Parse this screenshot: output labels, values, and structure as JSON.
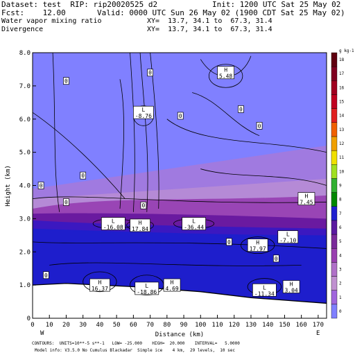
{
  "header": {
    "dataset": "Dataset: test  RIP: rip20020525 d2",
    "init": "Init: 1200 UTC Sat 25 May 02",
    "fcst": "Fcst:    12.00",
    "valid": "Valid: 0000 UTC Sun 26 May 02 (1900 CDT Sat 25 May 02)",
    "field1": "Water vapor mixing ratio",
    "xy1": "XY=  13.7, 34.1 to  67.3, 31.4",
    "field2": "Divergence",
    "xy2": "XY=  13.7, 34.1 to  67.3, 31.4"
  },
  "footer": {
    "line1": "CONTOURS:  UNITS=10**-5 s**-1   LOW= -25.000    HIGH=  20.000    INTERVAL=   5.0000",
    "line2": "Model info: V3.5.0 No Cumulus Blackadar  Simple ice    4 km,  29 levels,  10 sec",
    "west": "W",
    "east": "E"
  },
  "chart_data": {
    "type": "heatmap",
    "xlabel": "Distance (km)",
    "ylabel": "Height (km)",
    "xlim": [
      0,
      175
    ],
    "ylim": [
      0,
      8
    ],
    "xticks": [
      0,
      10,
      20,
      30,
      40,
      50,
      60,
      70,
      80,
      90,
      100,
      110,
      120,
      130,
      140,
      150,
      160,
      170
    ],
    "yticks": [
      "0",
      "1.0",
      "2.0",
      "3.0",
      "4.0",
      "5.0",
      "6.0",
      "7.0",
      "8.0"
    ],
    "colorbar": {
      "unit": "g kg-1",
      "levels": [
        "0",
        "1",
        "2",
        "3",
        "4",
        "5",
        "6",
        "7",
        "8",
        "9",
        "10",
        "11",
        "12",
        "13",
        "14",
        "15",
        "16",
        "17",
        "18"
      ],
      "colors": [
        "#8080ff",
        "#a066dd",
        "#c090d0",
        "#b070c8",
        "#9940b0",
        "#7a2a9a",
        "#5a1aa0",
        "#2020d0",
        "#008800",
        "#30b030",
        "#a0e020",
        "#f0e000",
        "#f0a000",
        "#f06000",
        "#e02020",
        "#c00020",
        "#a00020",
        "#800020",
        "#600010"
      ]
    },
    "labels_zero": [
      {
        "text": "0",
        "x": 20,
        "y": 7.15
      },
      {
        "text": "0",
        "x": 70,
        "y": 7.4
      },
      {
        "text": "0",
        "x": 124,
        "y": 6.3
      },
      {
        "text": "0",
        "x": 88,
        "y": 6.1
      },
      {
        "text": "0",
        "x": 30,
        "y": 4.3
      },
      {
        "text": "0",
        "x": 5,
        "y": 4.0
      },
      {
        "text": "0",
        "x": 20,
        "y": 3.5
      },
      {
        "text": "0",
        "x": 66,
        "y": 3.4
      },
      {
        "text": "0",
        "x": 135,
        "y": 5.8
      },
      {
        "text": "0",
        "x": 8,
        "y": 1.3
      },
      {
        "text": "0",
        "x": 117,
        "y": 2.3
      },
      {
        "text": "0",
        "x": 145,
        "y": 1.8
      }
    ],
    "extrema": [
      {
        "type": "H",
        "value": "5.48",
        "x": 115,
        "y": 7.4
      },
      {
        "type": "L",
        "value": "-8.76",
        "x": 66,
        "y": 6.2
      },
      {
        "type": "H",
        "value": "7.45",
        "x": 163,
        "y": 3.6
      },
      {
        "type": "L",
        "value": "-16.08",
        "x": 48,
        "y": 2.85
      },
      {
        "type": "H",
        "value": "17.84",
        "x": 64,
        "y": 2.8
      },
      {
        "type": "L",
        "value": "-36.44",
        "x": 96,
        "y": 2.85
      },
      {
        "type": "H",
        "value": "17.97",
        "x": 134,
        "y": 2.2
      },
      {
        "type": "L",
        "value": "-7.10",
        "x": 152,
        "y": 2.45
      },
      {
        "type": "H",
        "value": "16.37",
        "x": 40,
        "y": 1.0
      },
      {
        "type": "L",
        "value": "-18.86",
        "x": 68,
        "y": 0.9
      },
      {
        "type": "H",
        "value": "4.69",
        "x": 83,
        "y": 1.0
      },
      {
        "type": "L",
        "value": "-11.34",
        "x": 138,
        "y": 0.85
      },
      {
        "type": "H",
        "value": "3.04",
        "x": 154,
        "y": 0.95
      }
    ]
  }
}
